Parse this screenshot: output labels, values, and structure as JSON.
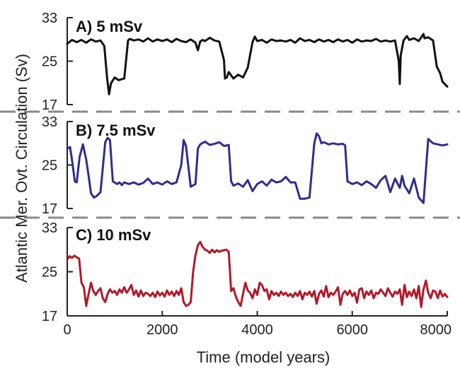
{
  "chart_data": {
    "type": "line",
    "xlabel": "Time (model years)",
    "ylabel": "Atlantic Mer. Ovt. Circulation (Sv)",
    "xlim": [
      0,
      8000
    ],
    "xticks": [
      "0",
      "2000",
      "4000",
      "6000",
      "8000"
    ],
    "panels": [
      {
        "label": "A) 5 mSv",
        "color": "#111111",
        "ylim": [
          17,
          33
        ],
        "yticks": [
          "33",
          "25",
          "17"
        ],
        "x": [
          0,
          100,
          200,
          300,
          400,
          500,
          600,
          700,
          780,
          840,
          880,
          920,
          1000,
          1080,
          1200,
          1280,
          1320,
          1400,
          1500,
          1600,
          1700,
          1800,
          1900,
          2000,
          2100,
          2200,
          2300,
          2400,
          2500,
          2600,
          2700,
          2750,
          2800,
          2850,
          2900,
          3000,
          3100,
          3200,
          3300,
          3320,
          3360,
          3400,
          3500,
          3600,
          3700,
          3800,
          3900,
          3950,
          4000,
          4100,
          4200,
          4300,
          4400,
          4500,
          4600,
          4700,
          4800,
          4900,
          5000,
          5100,
          5200,
          5300,
          5400,
          5500,
          5600,
          5700,
          5800,
          5900,
          6000,
          6100,
          6200,
          6300,
          6400,
          6500,
          6600,
          6700,
          6800,
          6900,
          6980,
          7000,
          7020,
          7080,
          7150,
          7200,
          7300,
          7400,
          7500,
          7520,
          7600,
          7700,
          7780,
          7850,
          7900,
          8000
        ],
        "y": [
          28.2,
          28.9,
          28.5,
          28.9,
          28.4,
          29.0,
          28.6,
          28.8,
          27.8,
          21.8,
          18.9,
          20.9,
          22.0,
          21.5,
          21.8,
          28.8,
          29.1,
          28.8,
          29.0,
          28.6,
          29.2,
          28.6,
          29.0,
          28.7,
          29.0,
          28.5,
          29.1,
          28.7,
          28.5,
          29.0,
          28.4,
          27.0,
          28.6,
          28.9,
          28.7,
          29.3,
          28.8,
          28.6,
          25.2,
          21.8,
          22.0,
          23.0,
          21.8,
          22.5,
          22.0,
          23.8,
          28.5,
          29.5,
          28.7,
          28.9,
          28.4,
          29.0,
          28.7,
          28.8,
          28.6,
          28.9,
          28.4,
          29.2,
          28.7,
          28.9,
          28.5,
          29.0,
          28.6,
          28.9,
          28.5,
          29.0,
          28.6,
          28.9,
          28.4,
          29.0,
          28.6,
          28.8,
          28.7,
          29.1,
          28.6,
          28.8,
          28.6,
          28.8,
          25.0,
          20.8,
          26.0,
          28.8,
          29.6,
          28.9,
          29.2,
          28.7,
          30.0,
          29.2,
          29.4,
          28.8,
          24.0,
          22.8,
          21.2,
          20.3
        ]
      },
      {
        "label": "B) 7.5 mSv",
        "color": "#2e2e8c",
        "ylim": [
          17,
          33
        ],
        "yticks": [
          "33",
          "25",
          "17"
        ],
        "x": [
          0,
          60,
          100,
          160,
          200,
          260,
          330,
          400,
          450,
          500,
          560,
          620,
          700,
          800,
          850,
          900,
          960,
          1050,
          1100,
          1150,
          1200,
          1300,
          1400,
          1500,
          1600,
          1700,
          1800,
          1900,
          2000,
          2100,
          2200,
          2300,
          2400,
          2450,
          2500,
          2560,
          2600,
          2700,
          2750,
          2800,
          2900,
          3000,
          3100,
          3200,
          3300,
          3400,
          3450,
          3500,
          3600,
          3700,
          3800,
          3900,
          4000,
          4100,
          4200,
          4300,
          4400,
          4500,
          4600,
          4700,
          4800,
          4900,
          5000,
          5100,
          5200,
          5250,
          5300,
          5350,
          5400,
          5500,
          5600,
          5700,
          5800,
          5850,
          5900,
          6000,
          6100,
          6200,
          6300,
          6400,
          6500,
          6600,
          6700,
          6800,
          6900,
          7000,
          7050,
          7100,
          7200,
          7300,
          7400,
          7500,
          7600,
          7700,
          7800,
          7900,
          8000
        ],
        "y": [
          28.0,
          28.3,
          26.0,
          22.0,
          21.8,
          26.5,
          28.8,
          26.0,
          23.0,
          19.8,
          19.0,
          19.3,
          20.0,
          29.2,
          30.0,
          29.6,
          22.0,
          21.5,
          21.8,
          21.3,
          21.8,
          21.5,
          21.8,
          21.4,
          21.7,
          22.5,
          21.5,
          21.8,
          21.4,
          22.0,
          21.5,
          21.8,
          25.0,
          29.6,
          28.5,
          24.0,
          21.0,
          21.5,
          28.0,
          28.8,
          29.3,
          28.7,
          28.9,
          29.2,
          28.5,
          28.7,
          22.0,
          21.2,
          21.6,
          21.0,
          22.2,
          20.2,
          21.5,
          22.0,
          21.2,
          22.3,
          21.8,
          22.0,
          22.8,
          21.8,
          21.8,
          18.8,
          18.8,
          19.0,
          29.0,
          30.8,
          30.3,
          29.0,
          29.2,
          28.8,
          29.0,
          28.8,
          28.9,
          28.6,
          22.0,
          21.5,
          21.8,
          21.3,
          22.0,
          21.5,
          20.8,
          22.2,
          23.0,
          20.0,
          22.5,
          20.8,
          23.0,
          21.2,
          19.8,
          22.5,
          19.0,
          18.0,
          29.8,
          29.0,
          28.8,
          28.6,
          28.8
        ]
      },
      {
        "label": "C) 10 mSv",
        "color": "#b01a2a",
        "ylim": [
          17,
          33
        ],
        "yticks": [
          "33",
          "25",
          "17"
        ],
        "x": [
          0,
          50,
          100,
          150,
          200,
          250,
          300,
          350,
          400,
          450,
          500,
          550,
          600,
          650,
          700,
          750,
          800,
          850,
          900,
          950,
          1000,
          1050,
          1100,
          1150,
          1200,
          1250,
          1300,
          1350,
          1400,
          1450,
          1500,
          1550,
          1600,
          1650,
          1700,
          1750,
          1800,
          1850,
          1900,
          1950,
          2000,
          2050,
          2100,
          2150,
          2200,
          2250,
          2300,
          2350,
          2400,
          2450,
          2500,
          2550,
          2600,
          2650,
          2700,
          2750,
          2800,
          2850,
          2900,
          2950,
          3000,
          3050,
          3100,
          3150,
          3200,
          3250,
          3300,
          3350,
          3400,
          3450,
          3500,
          3550,
          3600,
          3650,
          3700,
          3750,
          3800,
          3850,
          3900,
          3950,
          4000,
          4050,
          4100,
          4150,
          4200,
          4250,
          4300,
          4350,
          4400,
          4450,
          4500,
          4550,
          4600,
          4650,
          4700,
          4750,
          4800,
          4850,
          4900,
          4950,
          5000,
          5050,
          5100,
          5150,
          5200,
          5250,
          5300,
          5350,
          5400,
          5450,
          5500,
          5550,
          5600,
          5650,
          5700,
          5750,
          5800,
          5850,
          5900,
          5950,
          6000,
          6050,
          6100,
          6150,
          6200,
          6250,
          6300,
          6350,
          6400,
          6450,
          6500,
          6550,
          6600,
          6650,
          6700,
          6750,
          6800,
          6850,
          6900,
          6950,
          7000,
          7050,
          7100,
          7150,
          7200,
          7250,
          7300,
          7350,
          7400,
          7450,
          7500,
          7550,
          7600,
          7650,
          7700,
          7750,
          7800,
          7850,
          7900,
          7950,
          8000
        ],
        "y": [
          27.2,
          27.8,
          27.5,
          27.9,
          27.6,
          27.4,
          23.0,
          22.2,
          18.8,
          21.0,
          23.0,
          21.5,
          20.8,
          21.5,
          22.0,
          20.2,
          19.5,
          21.0,
          21.8,
          21.2,
          21.5,
          20.8,
          21.8,
          21.2,
          22.2,
          21.2,
          21.8,
          22.6,
          20.8,
          21.6,
          20.5,
          21.6,
          20.6,
          21.2,
          21.0,
          20.6,
          21.2,
          20.4,
          21.4,
          20.7,
          21.2,
          20.5,
          21.6,
          20.8,
          21.4,
          20.6,
          21.5,
          20.8,
          22.0,
          19.5,
          18.8,
          19.0,
          19.5,
          25.0,
          28.0,
          29.8,
          30.4,
          29.5,
          29.0,
          28.8,
          28.4,
          29.0,
          28.5,
          28.9,
          28.6,
          28.8,
          28.9,
          29.0,
          28.6,
          21.5,
          22.0,
          20.5,
          19.5,
          18.8,
          21.0,
          23.0,
          21.6,
          21.2,
          20.2,
          21.8,
          20.8,
          23.0,
          22.6,
          21.5,
          21.8,
          20.0,
          21.5,
          20.8,
          21.2,
          20.6,
          21.4,
          20.8,
          21.2,
          20.6,
          21.0,
          20.4,
          21.2,
          20.6,
          21.5,
          20.0,
          21.2,
          20.8,
          21.4,
          20.5,
          21.5,
          19.2,
          21.0,
          21.6,
          20.5,
          22.4,
          20.4,
          21.2,
          20.8,
          21.4,
          22.2,
          19.0,
          21.0,
          21.5,
          20.8,
          21.6,
          20.6,
          21.2,
          19.4,
          21.8,
          22.0,
          20.2,
          21.4,
          20.8,
          21.6,
          20.2,
          21.2,
          21.0,
          21.8,
          21.2,
          20.6,
          22.0,
          21.2,
          20.5,
          21.4,
          21.0,
          21.8,
          19.0,
          22.6,
          20.4,
          21.4,
          20.6,
          21.8,
          20.2,
          22.4,
          18.6,
          21.8,
          23.4,
          21.2,
          20.2,
          21.6,
          21.4,
          20.2,
          21.6,
          20.5,
          21.0,
          20.4
        ]
      }
    ]
  }
}
